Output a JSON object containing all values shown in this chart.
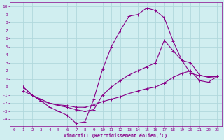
{
  "background_color": "#d0eef0",
  "grid_color": "#b0d8dc",
  "line_color": "#880088",
  "marker_color": "#880088",
  "xlabel": "Windchill (Refroidissement éolien,°C)",
  "xlabel_color": "#880088",
  "tick_color": "#880088",
  "xlim": [
    -0.5,
    23.5
  ],
  "ylim": [
    -4.8,
    10.5
  ],
  "yticks": [
    -4,
    -3,
    -2,
    -1,
    0,
    1,
    2,
    3,
    4,
    5,
    6,
    7,
    8,
    9,
    10
  ],
  "xticks": [
    0,
    1,
    2,
    3,
    4,
    5,
    6,
    7,
    8,
    9,
    10,
    11,
    12,
    13,
    14,
    15,
    16,
    17,
    18,
    19,
    20,
    21,
    22,
    23
  ],
  "line1_x": [
    1,
    2,
    3,
    4,
    5,
    6,
    7,
    8,
    9,
    10,
    11,
    12,
    13,
    14,
    15,
    16,
    17,
    18,
    19,
    20,
    21,
    22,
    23
  ],
  "line1_y": [
    0.0,
    -1.0,
    -1.7,
    -2.5,
    -3.0,
    -3.5,
    -4.5,
    -4.3,
    -1.5,
    2.2,
    5.0,
    7.0,
    8.8,
    9.0,
    9.8,
    9.5,
    8.6,
    5.7,
    3.3,
    1.7,
    1.4,
    1.3,
    1.3
  ],
  "line2_x": [
    1,
    2,
    3,
    4,
    5,
    6,
    7,
    8,
    9,
    10,
    11,
    12,
    13,
    14,
    15,
    16,
    17,
    18,
    19,
    20,
    21,
    22,
    23
  ],
  "line2_y": [
    0.0,
    -1.0,
    -1.5,
    -2.0,
    -2.3,
    -2.5,
    -2.8,
    -3.0,
    -2.8,
    -1.0,
    0.0,
    0.8,
    1.5,
    2.0,
    2.5,
    3.0,
    5.8,
    4.5,
    3.3,
    3.0,
    1.5,
    1.2,
    1.3
  ],
  "line3_x": [
    1,
    2,
    3,
    4,
    5,
    6,
    7,
    8,
    9,
    10,
    11,
    12,
    13,
    14,
    15,
    16,
    17,
    18,
    19,
    20,
    21,
    22,
    23
  ],
  "line3_y": [
    -0.5,
    -1.0,
    -1.7,
    -2.0,
    -2.2,
    -2.3,
    -2.5,
    -2.5,
    -2.2,
    -1.8,
    -1.5,
    -1.2,
    -0.8,
    -0.5,
    -0.2,
    0.0,
    0.5,
    1.2,
    1.7,
    2.0,
    0.8,
    0.6,
    1.3
  ]
}
